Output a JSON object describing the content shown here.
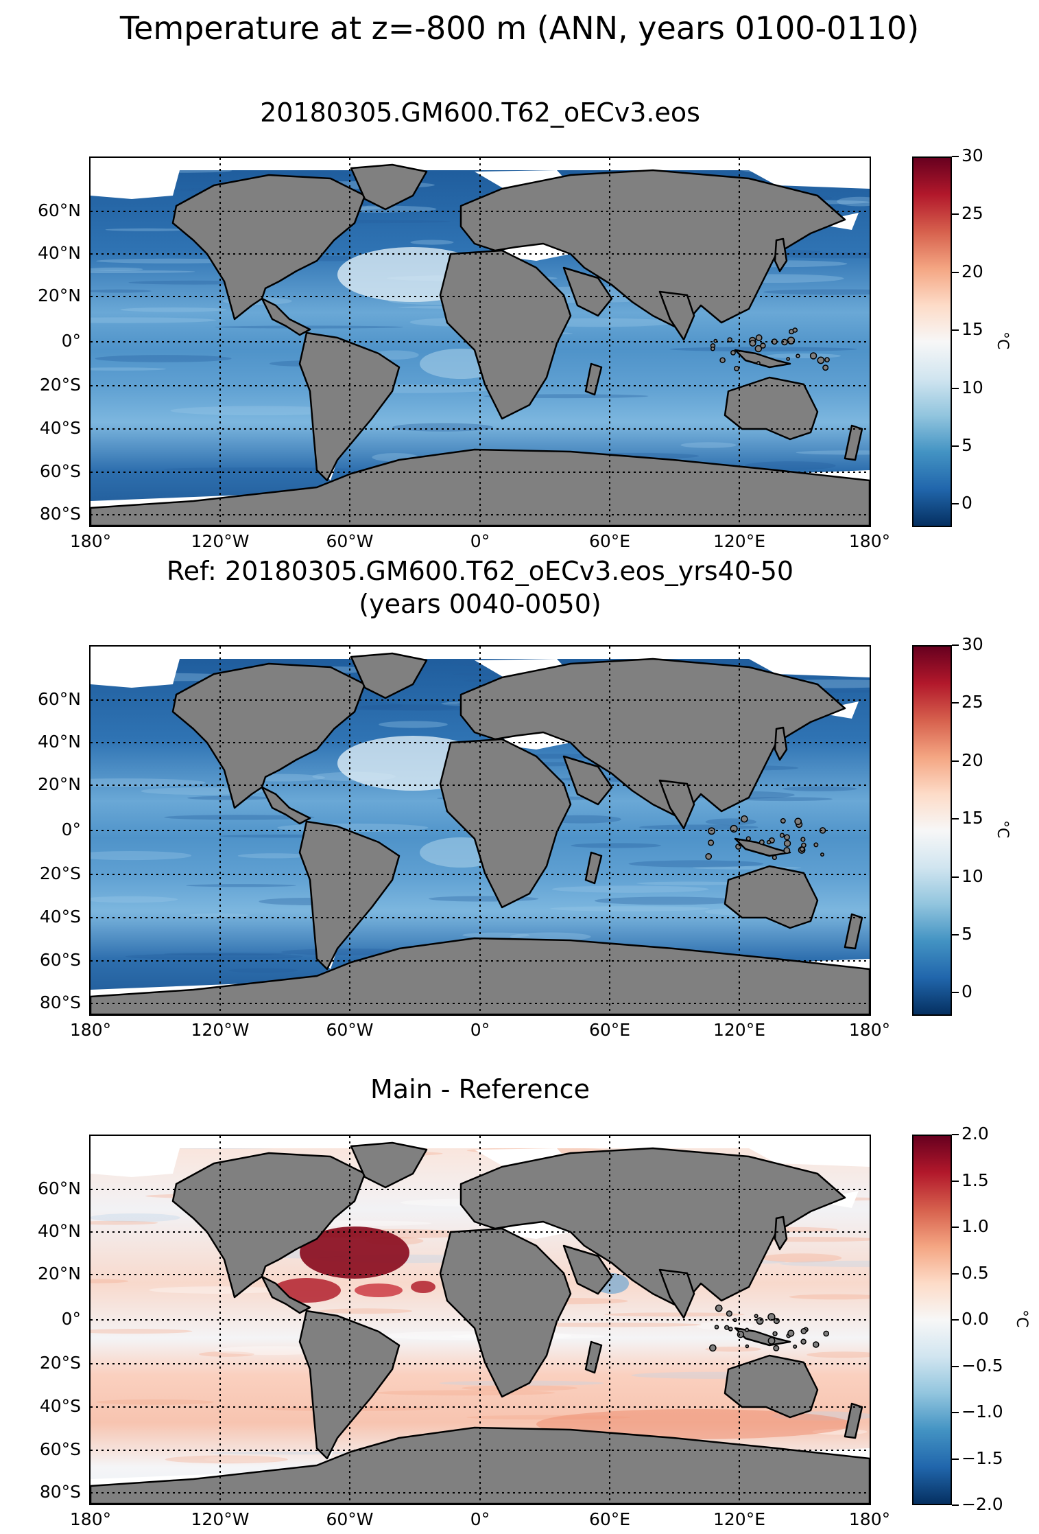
{
  "main_title": "Temperature at z=-800 m (ANN, years 0100-0110)",
  "panels": [
    {
      "title_lines": [
        "20180305.GM600.T62_oECv3.eos"
      ],
      "colormap": "temperature",
      "colorbar": {
        "label": "°C",
        "vmin": -2,
        "vmax": 30,
        "ticks": [
          "0",
          "5",
          "10",
          "15",
          "20",
          "25",
          "30"
        ]
      }
    },
    {
      "title_lines": [
        "Ref: 20180305.GM600.T62_oECv3.eos_yrs40-50",
        "(years 0040-0050)"
      ],
      "colormap": "temperature",
      "colorbar": {
        "label": "°C",
        "vmin": -2,
        "vmax": 30,
        "ticks": [
          "0",
          "5",
          "10",
          "15",
          "20",
          "25",
          "30"
        ]
      }
    },
    {
      "title_lines": [
        "Main - Reference"
      ],
      "colormap": "difference",
      "colorbar": {
        "label": "°C",
        "vmin": -2,
        "vmax": 2,
        "ticks": [
          "−2.0",
          "−1.5",
          "−1.0",
          "−0.5",
          "0.0",
          "0.5",
          "1.0",
          "1.5",
          "2.0"
        ]
      }
    }
  ],
  "lat_ticks": [
    "60°N",
    "40°N",
    "20°N",
    "0°",
    "20°S",
    "40°S",
    "60°S",
    "80°S"
  ],
  "lon_ticks": [
    "180°",
    "120°W",
    "60°W",
    "0°",
    "60°E",
    "120°E",
    "180°"
  ],
  "colors": {
    "land": "#808080",
    "ocean_deep": "#2c6fb0",
    "ocean_mid": "#5d9fd0",
    "ocean_warm": "#cfe3f0",
    "no_data": "#ffffff"
  }
}
